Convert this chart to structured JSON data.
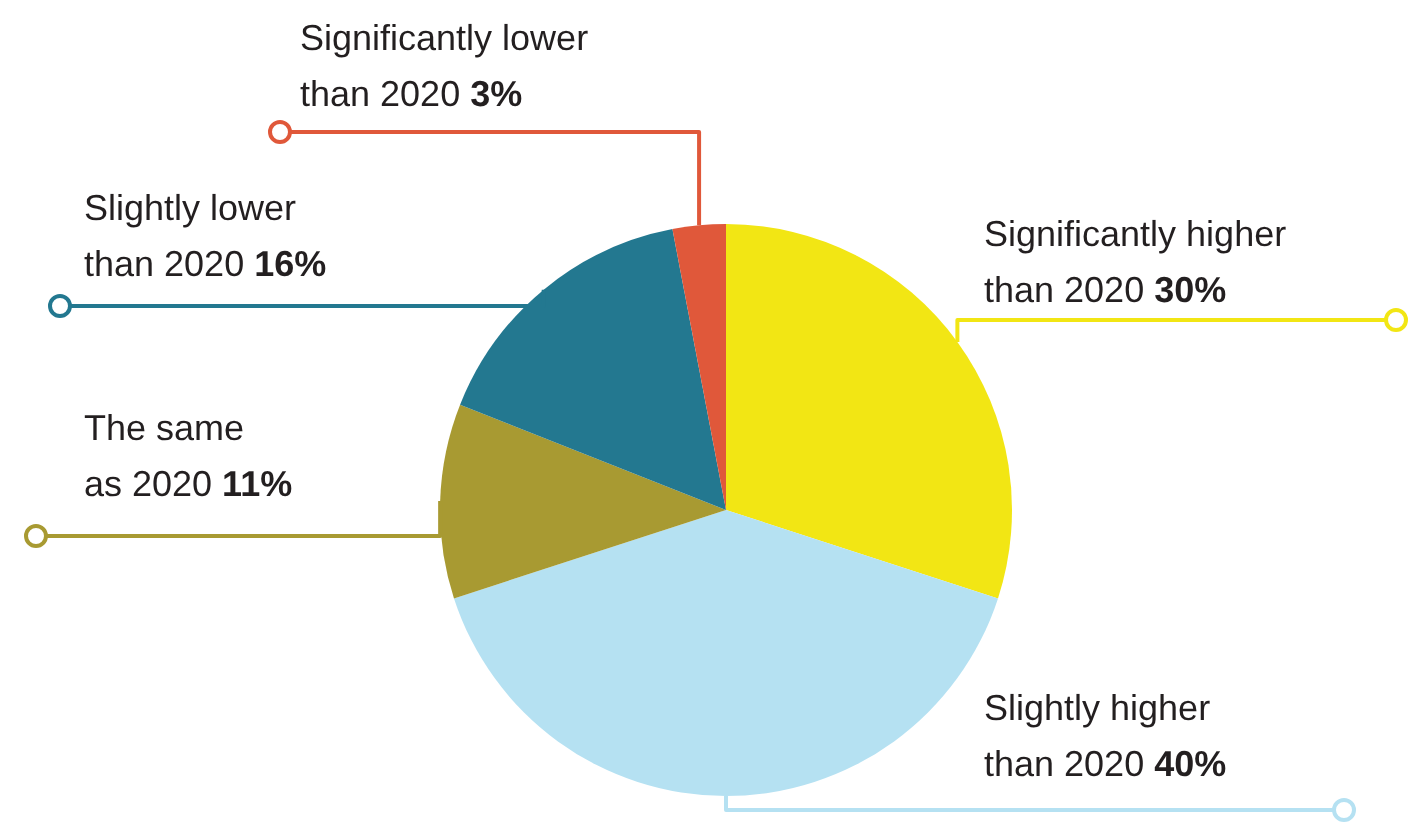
{
  "chart_data": {
    "type": "pie",
    "categories": [
      "Significantly higher\nthan 2020",
      "Slightly higher\nthan 2020",
      "The same\nas 2020",
      "Slightly lower\nthan 2020",
      "Significantly lower\nthan 2020"
    ],
    "values": [
      30,
      40,
      11,
      16,
      3
    ],
    "value_labels": [
      "30%",
      "40%",
      "11%",
      "16%",
      "3%"
    ],
    "colors": [
      "#f2e614",
      "#b5e1f2",
      "#a89a32",
      "#237890",
      "#e0583a"
    ],
    "legend": false
  }
}
